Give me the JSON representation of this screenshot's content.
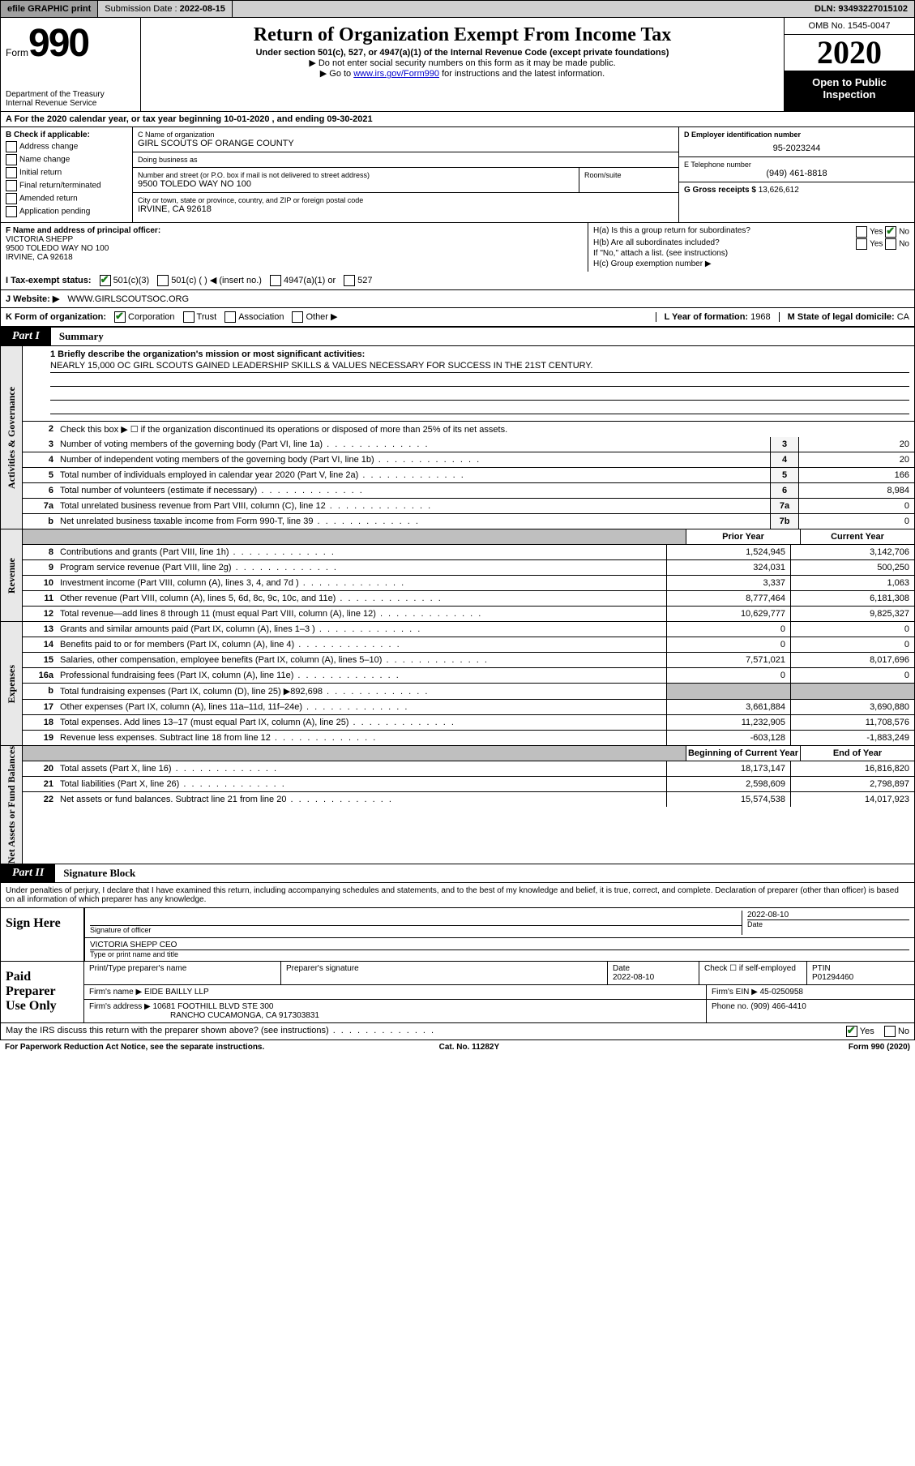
{
  "topbar": {
    "efile": "efile GRAPHIC print",
    "submission_label": "Submission Date : ",
    "submission_date": "2022-08-15",
    "dln_label": "DLN: ",
    "dln": "93493227015102"
  },
  "header": {
    "form_word": "Form",
    "form_number": "990",
    "dept": "Department of the Treasury\nInternal Revenue Service",
    "title": "Return of Organization Exempt From Income Tax",
    "subtitle": "Under section 501(c), 527, or 4947(a)(1) of the Internal Revenue Code (except private foundations)",
    "note1": "▶ Do not enter social security numbers on this form as it may be made public.",
    "note2_pre": "▶ Go to ",
    "note2_link": "www.irs.gov/Form990",
    "note2_post": " for instructions and the latest information.",
    "omb": "OMB No. 1545-0047",
    "year": "2020",
    "inspect": "Open to Public Inspection"
  },
  "A": {
    "text": "A For the 2020 calendar year, or tax year beginning 10-01-2020   , and ending 09-30-2021"
  },
  "B": {
    "label": "B Check if applicable:",
    "items": [
      "Address change",
      "Name change",
      "Initial return",
      "Final return/terminated",
      "Amended return",
      "Application pending"
    ]
  },
  "C": {
    "name_lbl": "C Name of organization",
    "name": "GIRL SCOUTS OF ORANGE COUNTY",
    "dba_lbl": "Doing business as",
    "dba": "",
    "street_lbl": "Number and street (or P.O. box if mail is not delivered to street address)",
    "room_lbl": "Room/suite",
    "street": "9500 TOLEDO WAY NO 100",
    "city_lbl": "City or town, state or province, country, and ZIP or foreign postal code",
    "city": "IRVINE, CA  92618"
  },
  "D": {
    "lbl": "D Employer identification number",
    "val": "95-2023244"
  },
  "E": {
    "lbl": "E Telephone number",
    "val": "(949) 461-8818"
  },
  "G": {
    "lbl": "G Gross receipts $ ",
    "val": "13,626,612"
  },
  "F": {
    "lbl": "F  Name and address of principal officer:",
    "name": "VICTORIA SHEPP",
    "addr1": "9500 TOLEDO WAY NO 100",
    "addr2": "IRVINE, CA  92618"
  },
  "H": {
    "a": "H(a)  Is this a group return for subordinates?",
    "a_yes": "Yes",
    "a_no": "No",
    "b": "H(b)  Are all subordinates included?",
    "b_yes": "Yes",
    "b_no": "No",
    "b_note": "If \"No,\" attach a list. (see instructions)",
    "c": "H(c)  Group exemption number ▶"
  },
  "I": {
    "lbl": "I  Tax-exempt status:",
    "o1": "501(c)(3)",
    "o2": "501(c) (  ) ◀ (insert no.)",
    "o3": "4947(a)(1) or",
    "o4": "527"
  },
  "J": {
    "lbl": "J  Website: ▶",
    "val": "WWW.GIRLSCOUTSOC.ORG"
  },
  "K": {
    "lbl": "K Form of organization:",
    "o1": "Corporation",
    "o2": "Trust",
    "o3": "Association",
    "o4": "Other ▶",
    "L_lbl": "L Year of formation: ",
    "L_val": "1968",
    "M_lbl": "M State of legal domicile: ",
    "M_val": "CA"
  },
  "part1": {
    "tab": "Part I",
    "title": "Summary"
  },
  "summary": {
    "q1_lbl": "1  Briefly describe the organization's mission or most significant activities:",
    "q1_val": "NEARLY 15,000 OC GIRL SCOUTS GAINED LEADERSHIP SKILLS & VALUES NECESSARY FOR SUCCESS IN THE 21ST CENTURY.",
    "q2": "Check this box ▶ ☐  if the organization discontinued its operations or disposed of more than 25% of its net assets.",
    "lines_gov": [
      {
        "n": "3",
        "t": "Number of voting members of the governing body (Part VI, line 1a)",
        "box": "3",
        "v": "20"
      },
      {
        "n": "4",
        "t": "Number of independent voting members of the governing body (Part VI, line 1b)",
        "box": "4",
        "v": "20"
      },
      {
        "n": "5",
        "t": "Total number of individuals employed in calendar year 2020 (Part V, line 2a)",
        "box": "5",
        "v": "166"
      },
      {
        "n": "6",
        "t": "Total number of volunteers (estimate if necessary)",
        "box": "6",
        "v": "8,984"
      },
      {
        "n": "7a",
        "t": "Total unrelated business revenue from Part VIII, column (C), line 12",
        "box": "7a",
        "v": "0"
      },
      {
        "n": "b",
        "t": "Net unrelated business taxable income from Form 990-T, line 39",
        "box": "7b",
        "v": "0"
      }
    ],
    "rev_hdr": {
      "c1": "Prior Year",
      "c2": "Current Year"
    },
    "lines_rev": [
      {
        "n": "8",
        "t": "Contributions and grants (Part VIII, line 1h)",
        "p": "1,524,945",
        "c": "3,142,706"
      },
      {
        "n": "9",
        "t": "Program service revenue (Part VIII, line 2g)",
        "p": "324,031",
        "c": "500,250"
      },
      {
        "n": "10",
        "t": "Investment income (Part VIII, column (A), lines 3, 4, and 7d )",
        "p": "3,337",
        "c": "1,063"
      },
      {
        "n": "11",
        "t": "Other revenue (Part VIII, column (A), lines 5, 6d, 8c, 9c, 10c, and 11e)",
        "p": "8,777,464",
        "c": "6,181,308"
      },
      {
        "n": "12",
        "t": "Total revenue—add lines 8 through 11 (must equal Part VIII, column (A), line 12)",
        "p": "10,629,777",
        "c": "9,825,327"
      }
    ],
    "lines_exp": [
      {
        "n": "13",
        "t": "Grants and similar amounts paid (Part IX, column (A), lines 1–3 )",
        "p": "0",
        "c": "0"
      },
      {
        "n": "14",
        "t": "Benefits paid to or for members (Part IX, column (A), line 4)",
        "p": "0",
        "c": "0"
      },
      {
        "n": "15",
        "t": "Salaries, other compensation, employee benefits (Part IX, column (A), lines 5–10)",
        "p": "7,571,021",
        "c": "8,017,696"
      },
      {
        "n": "16a",
        "t": "Professional fundraising fees (Part IX, column (A), line 11e)",
        "p": "0",
        "c": "0"
      },
      {
        "n": "b",
        "t": "Total fundraising expenses (Part IX, column (D), line 25) ▶892,698",
        "p": "GREY",
        "c": "GREY"
      },
      {
        "n": "17",
        "t": "Other expenses (Part IX, column (A), lines 11a–11d, 11f–24e)",
        "p": "3,661,884",
        "c": "3,690,880"
      },
      {
        "n": "18",
        "t": "Total expenses. Add lines 13–17 (must equal Part IX, column (A), line 25)",
        "p": "11,232,905",
        "c": "11,708,576"
      },
      {
        "n": "19",
        "t": "Revenue less expenses. Subtract line 18 from line 12",
        "p": "-603,128",
        "c": "-1,883,249"
      }
    ],
    "na_hdr": {
      "c1": "Beginning of Current Year",
      "c2": "End of Year"
    },
    "lines_na": [
      {
        "n": "20",
        "t": "Total assets (Part X, line 16)",
        "p": "18,173,147",
        "c": "16,816,820"
      },
      {
        "n": "21",
        "t": "Total liabilities (Part X, line 26)",
        "p": "2,598,609",
        "c": "2,798,897"
      },
      {
        "n": "22",
        "t": "Net assets or fund balances. Subtract line 21 from line 20",
        "p": "15,574,538",
        "c": "14,017,923"
      }
    ],
    "vtabs": {
      "gov": "Activities & Governance",
      "rev": "Revenue",
      "exp": "Expenses",
      "na": "Net Assets or Fund Balances"
    }
  },
  "part2": {
    "tab": "Part II",
    "title": "Signature Block"
  },
  "sig": {
    "intro": "Under penalties of perjury, I declare that I have examined this return, including accompanying schedules and statements, and to the best of my knowledge and belief, it is true, correct, and complete. Declaration of preparer (other than officer) is based on all information of which preparer has any knowledge.",
    "sign_here": "Sign Here",
    "sig_of_officer": "Signature of officer",
    "date_lbl": "Date",
    "date": "2022-08-10",
    "officer": "VICTORIA SHEPP  CEO",
    "officer_lbl": "Type or print name and title"
  },
  "prep": {
    "title": "Paid Preparer Use Only",
    "row1": {
      "c1": "Print/Type preparer's name",
      "c2": "Preparer's signature",
      "c3_lbl": "Date",
      "c3": "2022-08-10",
      "c4_lbl": "Check ☐ if self-employed",
      "c5_lbl": "PTIN",
      "c5": "P01294460"
    },
    "row2": {
      "lbl": "Firm's name    ▶",
      "val": "EIDE BAILLY LLP",
      "ein_lbl": "Firm's EIN ▶",
      "ein": "45-0250958"
    },
    "row3": {
      "lbl": "Firm's address ▶",
      "val1": "10681 FOOTHILL BLVD STE 300",
      "val2": "RANCHO CUCAMONGA, CA  917303831",
      "ph_lbl": "Phone no. ",
      "ph": "(909) 466-4410"
    }
  },
  "discuss": {
    "q": "May the IRS discuss this return with the preparer shown above? (see instructions)",
    "yes": "Yes",
    "no": "No"
  },
  "footer": {
    "l": "For Paperwork Reduction Act Notice, see the separate instructions.",
    "c": "Cat. No. 11282Y",
    "r": "Form 990 (2020)"
  }
}
